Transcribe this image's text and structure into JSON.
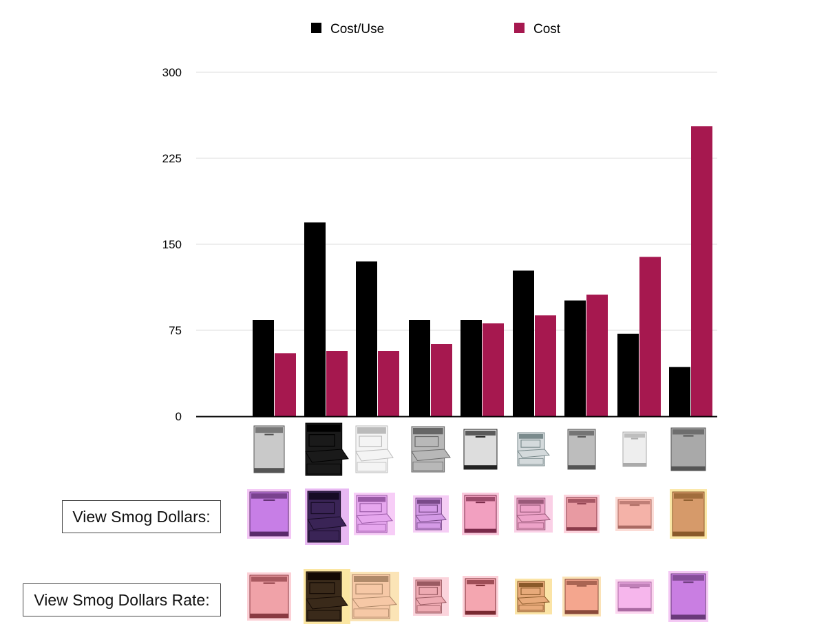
{
  "chart_data": {
    "type": "bar",
    "title": "",
    "xlabel": "",
    "ylabel": "",
    "ylim": [
      0,
      300
    ],
    "yticks": [
      "0",
      "75",
      "150",
      "225",
      "300"
    ],
    "legend_position": "top",
    "grid": true,
    "categories": [
      "",
      "",
      "",
      "",
      "",
      "",
      "",
      "",
      ""
    ],
    "series": [
      {
        "name": "Cost/Use",
        "color": "#000000",
        "values": [
          84,
          169,
          135,
          84,
          84,
          127,
          101,
          72,
          43
        ]
      },
      {
        "name": "Cost",
        "color": "#a6184f",
        "values": [
          55,
          57,
          57,
          63,
          81,
          88,
          106,
          139,
          253
        ]
      }
    ]
  },
  "thumbnails": {
    "icon": "dishwasher-icon",
    "original": [
      {
        "body": "#c9c9c9",
        "edge": "#555555",
        "open": false
      },
      {
        "body": "#1a1a1a",
        "edge": "#000000",
        "open": true
      },
      {
        "body": "#f4f4f4",
        "edge": "#bbbbbb",
        "open": true
      },
      {
        "body": "#b8b8b8",
        "edge": "#666666",
        "open": true
      },
      {
        "body": "#dddddd",
        "edge": "#222222",
        "open": false
      },
      {
        "body": "#d4dadc",
        "edge": "#7a8a8c",
        "open": true
      },
      {
        "body": "#bdbdbd",
        "edge": "#555555",
        "open": false
      },
      {
        "body": "#eeeeee",
        "edge": "#aaaaaa",
        "open": false
      },
      {
        "body": "#a9a9a9",
        "edge": "#555555",
        "open": false
      }
    ],
    "smog_dollars": [
      {
        "bg": "#f3c6f5",
        "body": "#c77ee6",
        "edge": "#5a2a6a",
        "open": false
      },
      {
        "bg": "#e8b8f2",
        "body": "#3a2456",
        "edge": "#160b24",
        "open": true
      },
      {
        "bg": "#f7cdf7",
        "body": "#e6a6ee",
        "edge": "#9a5aa6",
        "open": true
      },
      {
        "bg": "#f5cdf5",
        "body": "#d49ae6",
        "edge": "#7a4a8a",
        "open": true
      },
      {
        "bg": "#fac8dc",
        "body": "#f2a0c0",
        "edge": "#7a2a4a",
        "open": false
      },
      {
        "bg": "#fad0e6",
        "body": "#eda2c8",
        "edge": "#9a5a7a",
        "open": true
      },
      {
        "bg": "#fcd2dc",
        "body": "#e89aa2",
        "edge": "#8a3a4a",
        "open": false
      },
      {
        "bg": "#fcdcd6",
        "body": "#f4b2a8",
        "edge": "#aa6a62",
        "open": false
      },
      {
        "bg": "#fbe7a6",
        "body": "#d69a6a",
        "edge": "#8a5a2a",
        "open": false
      }
    ],
    "smog_dollars_rate": [
      {
        "bg": "#fcd0d6",
        "body": "#f0a2a8",
        "edge": "#8a3a42",
        "open": false
      },
      {
        "bg": "#fbe6a2",
        "body": "#3a2a1a",
        "edge": "#140a04",
        "open": true
      },
      {
        "bg": "#fbe4b6",
        "body": "#f6c8a6",
        "edge": "#b08a6a",
        "open": true
      },
      {
        "bg": "#fbd4dc",
        "body": "#eeaab2",
        "edge": "#9a5a62",
        "open": true
      },
      {
        "bg": "#fcd0d8",
        "body": "#f4a6b0",
        "edge": "#7a2a32",
        "open": false
      },
      {
        "bg": "#fbe4a6",
        "body": "#e8aa7a",
        "edge": "#8a5a2a",
        "open": true
      },
      {
        "bg": "#fbe2b6",
        "body": "#f4a68e",
        "edge": "#8a4a3a",
        "open": false
      },
      {
        "bg": "#fcd6f0",
        "body": "#f6b6ec",
        "edge": "#aa6aa2",
        "open": false
      },
      {
        "bg": "#f4c8f4",
        "body": "#c97ee2",
        "edge": "#6a3a7a",
        "open": false
      }
    ]
  },
  "controls": {
    "smog_dollars_label": "View Smog Dollars:",
    "smog_dollars_rate_label": "View Smog Dollars Rate:"
  }
}
